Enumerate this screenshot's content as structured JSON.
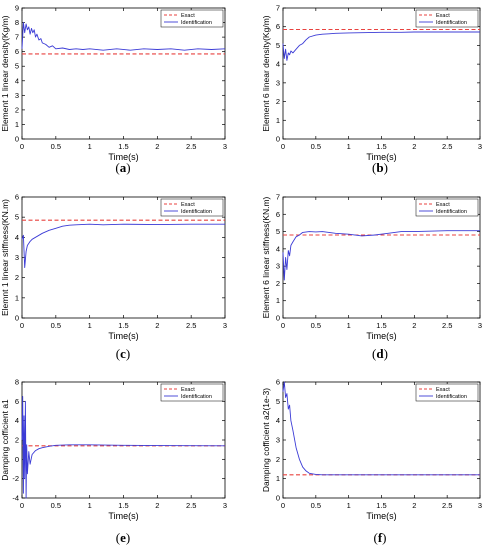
{
  "colors": {
    "exact": "#e8423f",
    "identification": "#3b3bd6",
    "axes": "#000000"
  },
  "chart_data": [
    {
      "id": "a",
      "type": "line",
      "caption": "a",
      "xlabel": "Time(s)",
      "ylabel": "Element 1 linear density(Kg/m)",
      "xlim": [
        0,
        3
      ],
      "ylim": [
        0,
        9
      ],
      "xticks": [
        0,
        0.5,
        1,
        1.5,
        2,
        2.5,
        3
      ],
      "xtick_labels": [
        "0",
        "0.5",
        "1",
        "1.5",
        "2",
        "2.5",
        "3"
      ],
      "yticks": [
        0,
        1,
        2,
        3,
        4,
        5,
        6,
        7,
        8,
        9
      ],
      "ytick_labels": [
        "0",
        "1",
        "2",
        "3",
        "4",
        "5",
        "6",
        "7",
        "8",
        "9"
      ],
      "legend": {
        "position": "top-right",
        "entries": [
          "Exact",
          "Identification"
        ]
      },
      "series": [
        {
          "name": "Exact",
          "style": "dashed",
          "x": [
            0,
            3
          ],
          "y": [
            5.85,
            5.85
          ]
        },
        {
          "name": "Identification",
          "style": "solid",
          "x": [
            0,
            0.02,
            0.04,
            0.06,
            0.08,
            0.1,
            0.12,
            0.14,
            0.16,
            0.18,
            0.2,
            0.22,
            0.25,
            0.28,
            0.3,
            0.35,
            0.4,
            0.45,
            0.5,
            0.6,
            0.7,
            0.8,
            0.9,
            1.0,
            1.2,
            1.4,
            1.6,
            1.8,
            2.0,
            2.2,
            2.4,
            2.6,
            2.8,
            3.0
          ],
          "y": [
            6.2,
            8.0,
            7.3,
            7.9,
            7.5,
            7.7,
            7.2,
            7.6,
            7.3,
            7.5,
            7.0,
            7.2,
            6.8,
            6.9,
            6.6,
            6.5,
            6.3,
            6.4,
            6.2,
            6.25,
            6.15,
            6.2,
            6.15,
            6.2,
            6.1,
            6.2,
            6.1,
            6.2,
            6.15,
            6.2,
            6.1,
            6.2,
            6.15,
            6.2
          ]
        }
      ]
    },
    {
      "id": "b",
      "type": "line",
      "caption": "b",
      "xlabel": "Time(s)",
      "ylabel": "Element 6 linear density(Kg/m)",
      "xlim": [
        0,
        3
      ],
      "ylim": [
        0,
        7
      ],
      "xticks": [
        0,
        0.5,
        1,
        1.5,
        2,
        2.5,
        3
      ],
      "xtick_labels": [
        "0",
        "0.5",
        "1",
        "1.5",
        "2",
        "2.5",
        "3"
      ],
      "yticks": [
        0,
        1,
        2,
        3,
        4,
        5,
        6,
        7
      ],
      "ytick_labels": [
        "0",
        "1",
        "2",
        "3",
        "4",
        "5",
        "6",
        "7"
      ],
      "legend": {
        "position": "top-right",
        "entries": [
          "Exact",
          "Identification"
        ]
      },
      "series": [
        {
          "name": "Exact",
          "style": "dashed",
          "x": [
            0,
            3
          ],
          "y": [
            5.85,
            5.85
          ]
        },
        {
          "name": "Identification",
          "style": "solid",
          "x": [
            0,
            0.02,
            0.04,
            0.06,
            0.08,
            0.1,
            0.12,
            0.15,
            0.2,
            0.25,
            0.3,
            0.35,
            0.4,
            0.5,
            0.6,
            0.7,
            0.8,
            1.0,
            1.2,
            1.5,
            1.8,
            2.0,
            2.5,
            3.0
          ],
          "y": [
            5.1,
            4.3,
            4.8,
            4.2,
            4.6,
            4.5,
            4.7,
            4.6,
            4.8,
            5.0,
            5.1,
            5.3,
            5.45,
            5.55,
            5.6,
            5.62,
            5.65,
            5.67,
            5.68,
            5.7,
            5.7,
            5.72,
            5.72,
            5.72
          ]
        }
      ]
    },
    {
      "id": "c",
      "type": "line",
      "caption": "c",
      "xlabel": "Time(s)",
      "ylabel": "Elemnt 1 linear stiffness(KN.m)",
      "xlim": [
        0,
        3
      ],
      "ylim": [
        0,
        6
      ],
      "xticks": [
        0,
        0.5,
        1,
        1.5,
        2,
        2.5,
        3
      ],
      "xtick_labels": [
        "0",
        "0.5",
        "1",
        "1.5",
        "2",
        "2.5",
        "3"
      ],
      "yticks": [
        0,
        1,
        2,
        3,
        4,
        5,
        6
      ],
      "ytick_labels": [
        "0",
        "1",
        "2",
        "3",
        "4",
        "5",
        "6"
      ],
      "legend": {
        "position": "top-right",
        "entries": [
          "Exact",
          "Identification"
        ]
      },
      "series": [
        {
          "name": "Exact",
          "style": "dashed",
          "x": [
            0,
            3
          ],
          "y": [
            4.85,
            4.85
          ]
        },
        {
          "name": "Identification",
          "style": "solid",
          "x": [
            0,
            0.02,
            0.04,
            0.06,
            0.08,
            0.1,
            0.12,
            0.15,
            0.2,
            0.25,
            0.3,
            0.4,
            0.5,
            0.6,
            0.7,
            0.8,
            1.0,
            1.2,
            1.5,
            2.0,
            2.5,
            3.0
          ],
          "y": [
            3.9,
            4.1,
            2.5,
            3.3,
            3.6,
            3.7,
            3.8,
            3.9,
            4.0,
            4.1,
            4.2,
            4.35,
            4.45,
            4.55,
            4.6,
            4.62,
            4.65,
            4.62,
            4.65,
            4.63,
            4.65,
            4.65
          ]
        }
      ]
    },
    {
      "id": "d",
      "type": "line",
      "caption": "d",
      "xlabel": "Time(s)",
      "ylabel": "Element 6 linear stiffness(KN.m)",
      "xlim": [
        0,
        3
      ],
      "ylim": [
        0,
        7
      ],
      "xticks": [
        0,
        0.5,
        1,
        1.5,
        2,
        2.5,
        3
      ],
      "xtick_labels": [
        "0",
        "0.5",
        "1",
        "1.5",
        "2",
        "2.5",
        "3"
      ],
      "yticks": [
        0,
        1,
        2,
        3,
        4,
        5,
        6,
        7
      ],
      "ytick_labels": [
        "0",
        "1",
        "2",
        "3",
        "4",
        "5",
        "6",
        "7"
      ],
      "legend": {
        "position": "top-right",
        "entries": [
          "Exact",
          "Identification"
        ]
      },
      "series": [
        {
          "name": "Exact",
          "style": "dashed",
          "x": [
            0,
            3
          ],
          "y": [
            4.8,
            4.8
          ]
        },
        {
          "name": "Identification",
          "style": "solid",
          "x": [
            0,
            0.02,
            0.04,
            0.06,
            0.08,
            0.1,
            0.12,
            0.15,
            0.2,
            0.25,
            0.3,
            0.4,
            0.5,
            0.6,
            0.8,
            1.0,
            1.2,
            1.4,
            1.6,
            1.8,
            2.0,
            2.5,
            3.0
          ],
          "y": [
            3.8,
            2.2,
            3.5,
            2.8,
            3.9,
            3.6,
            4.2,
            4.4,
            4.7,
            4.8,
            4.95,
            5.0,
            4.98,
            5.0,
            4.9,
            4.85,
            4.75,
            4.8,
            4.9,
            5.0,
            5.0,
            5.05,
            5.05
          ]
        }
      ]
    },
    {
      "id": "e",
      "type": "line",
      "caption": "e",
      "xlabel": "Time(s)",
      "ylabel": "Damping cofficient a1",
      "xlim": [
        0,
        3
      ],
      "ylim": [
        -4,
        8
      ],
      "xticks": [
        0,
        0.5,
        1,
        1.5,
        2,
        2.5,
        3
      ],
      "xtick_labels": [
        "0",
        "0.5",
        "1",
        "1.5",
        "2",
        "2.5",
        "3"
      ],
      "yticks": [
        -4,
        -2,
        0,
        2,
        4,
        6,
        8
      ],
      "ytick_labels": [
        "-4",
        "-2",
        "0",
        "2",
        "4",
        "6",
        "8"
      ],
      "legend": {
        "position": "top-right",
        "entries": [
          "Exact",
          "Identification"
        ]
      },
      "series": [
        {
          "name": "Exact",
          "style": "dashed",
          "x": [
            0,
            3
          ],
          "y": [
            1.4,
            1.4
          ]
        },
        {
          "name": "Identification",
          "style": "solid",
          "x": [
            0,
            0.01,
            0.02,
            0.03,
            0.04,
            0.05,
            0.06,
            0.07,
            0.08,
            0.1,
            0.12,
            0.15,
            0.2,
            0.25,
            0.3,
            0.4,
            0.5,
            0.7,
            1.0,
            1.5,
            2.0,
            3.0
          ],
          "y": [
            2.0,
            6.5,
            -3.5,
            4.5,
            -2.0,
            6.0,
            -4.0,
            1.5,
            -1.5,
            0.8,
            -0.5,
            0.5,
            0.9,
            1.1,
            1.2,
            1.35,
            1.45,
            1.5,
            1.5,
            1.45,
            1.42,
            1.4
          ]
        }
      ]
    },
    {
      "id": "f",
      "type": "line",
      "caption": "f",
      "xlabel": "Time(s)",
      "ylabel": "Damping cofficient a2(1e-3)",
      "xlim": [
        0,
        3
      ],
      "ylim": [
        0,
        6
      ],
      "xticks": [
        0,
        0.5,
        1,
        1.5,
        2,
        2.5,
        3
      ],
      "xtick_labels": [
        "0",
        "0.5",
        "1",
        "1.5",
        "2",
        "2.5",
        "3"
      ],
      "yticks": [
        0,
        1,
        2,
        3,
        4,
        5,
        6
      ],
      "ytick_labels": [
        "0",
        "1",
        "2",
        "3",
        "4",
        "5",
        "6"
      ],
      "legend": {
        "position": "top-right",
        "entries": [
          "Exact",
          "Identification"
        ]
      },
      "series": [
        {
          "name": "Exact",
          "style": "dashed",
          "x": [
            0,
            3
          ],
          "y": [
            1.2,
            1.2
          ]
        },
        {
          "name": "Identification",
          "style": "solid",
          "x": [
            0,
            0.02,
            0.04,
            0.06,
            0.08,
            0.1,
            0.12,
            0.15,
            0.2,
            0.25,
            0.3,
            0.35,
            0.4,
            0.5,
            0.6,
            0.8,
            1.0,
            1.5,
            2.0,
            3.0
          ],
          "y": [
            5.5,
            6.0,
            5.2,
            5.4,
            4.6,
            4.8,
            4.0,
            3.5,
            2.6,
            2.0,
            1.6,
            1.4,
            1.28,
            1.22,
            1.2,
            1.2,
            1.2,
            1.2,
            1.2,
            1.2
          ]
        }
      ]
    }
  ]
}
